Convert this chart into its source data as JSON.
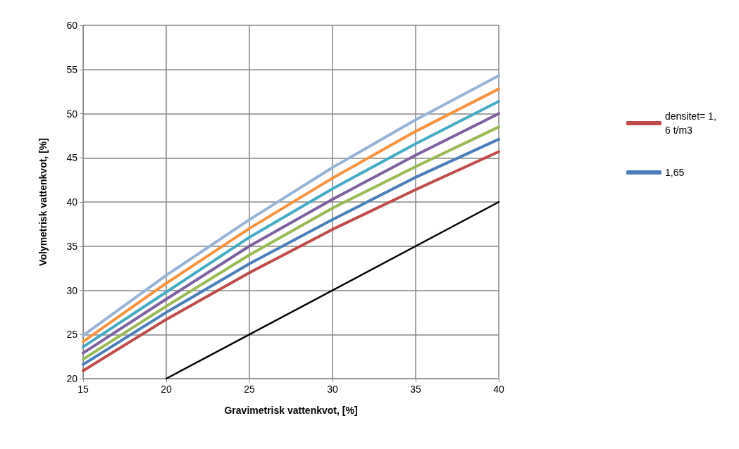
{
  "chart_data": {
    "type": "line",
    "xlabel": "Gravimetrisk vattenkvot, [%]",
    "ylabel": "Volymetrisk vattenkvot, [%]",
    "x": [
      15,
      20,
      25,
      30,
      35,
      40
    ],
    "series": [
      {
        "name": "densitet= 1,6 t/m3",
        "color": "#be4b48",
        "values": [
          20.9,
          26.7,
          32.0,
          36.9,
          41.4,
          45.7
        ]
      },
      {
        "name": "1,65",
        "color": "#4a7ebb",
        "values": [
          21.6,
          27.5,
          33.0,
          38.0,
          42.8,
          47.1
        ]
      },
      {
        "color": "#98b954",
        "values": [
          22.2,
          28.2,
          34.0,
          39.3,
          44.0,
          48.5
        ]
      },
      {
        "color": "#7d60a0",
        "values": [
          22.9,
          29.0,
          35.0,
          40.3,
          45.3,
          50.0
        ]
      },
      {
        "color": "#46aac5",
        "values": [
          23.6,
          29.8,
          36.0,
          41.5,
          46.6,
          51.4
        ]
      },
      {
        "color": "#f69240",
        "values": [
          24.2,
          30.8,
          37.0,
          42.7,
          48.0,
          52.8
        ]
      },
      {
        "color": "#95b3d7",
        "values": [
          24.9,
          31.7,
          38.0,
          43.9,
          49.3,
          54.3
        ]
      },
      {
        "color": "#000000",
        "x": [
          20,
          40
        ],
        "values": [
          20,
          40
        ]
      }
    ],
    "xlim": [
      15,
      40
    ],
    "xticks": [
      15,
      20,
      25,
      30,
      35,
      40
    ],
    "ylim": [
      20,
      60
    ],
    "yticks": [
      20,
      25,
      30,
      35,
      40,
      45,
      50,
      55,
      60
    ],
    "grid": true,
    "legend": "right",
    "marker": "none",
    "line_style": "solid"
  }
}
